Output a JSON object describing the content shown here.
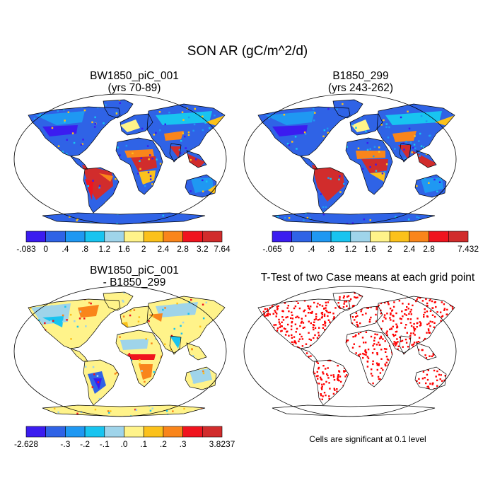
{
  "title": "SON AR (gC/m^2/d)",
  "panels": [
    {
      "title_line1": "BW1850_piC_001",
      "title_line2": "(yrs 70-89)"
    },
    {
      "title_line1": "B1850_299",
      "title_line2": "(yrs 243-262)"
    },
    {
      "title_line1": "BW1850_piC_001",
      "title_line2": "- B1850_299"
    },
    {
      "title_line1": "T-Test of two Case means at each grid point",
      "title_line2": ""
    }
  ],
  "colorbars": [
    {
      "colors": [
        "#3b1cf0",
        "#2f63e6",
        "#1f98f2",
        "#18c4f0",
        "#9fd4ea",
        "#fff38a",
        "#fbc11b",
        "#f9851b",
        "#f0141e",
        "#d12c2c"
      ],
      "labels": [
        "-.083",
        "0",
        ".4",
        ".8",
        "1.2",
        "1.6",
        "2",
        "2.4",
        "2.8",
        "3.2",
        "7.64"
      ]
    },
    {
      "colors": [
        "#3b1cf0",
        "#2f63e6",
        "#1f98f2",
        "#18c4f0",
        "#9fd4ea",
        "#fff38a",
        "#fbc11b",
        "#f9851b",
        "#f0141e",
        "#d12c2c"
      ],
      "labels": [
        "-.065",
        "0",
        ".4",
        ".8",
        "1.2",
        "1.6",
        "2",
        "2.4",
        "2.8",
        "",
        "7.432"
      ]
    },
    {
      "colors": [
        "#3b1cf0",
        "#2f63e6",
        "#1f98f2",
        "#18c4f0",
        "#9fd4ea",
        "#fff38a",
        "#fbc11b",
        "#f9851b",
        "#f0141e",
        "#d12c2c"
      ],
      "labels": [
        "-2.628",
        "",
        "-.3",
        "-.2",
        "-.1",
        ".0",
        ".1",
        ".2",
        ".3",
        "",
        "3.8237"
      ]
    }
  ],
  "significance_note": "Cells are significant at 0.1 level",
  "map_colors": {
    "ocean": "#ffffff",
    "outline": "#000000",
    "significant": "#ff0000"
  }
}
